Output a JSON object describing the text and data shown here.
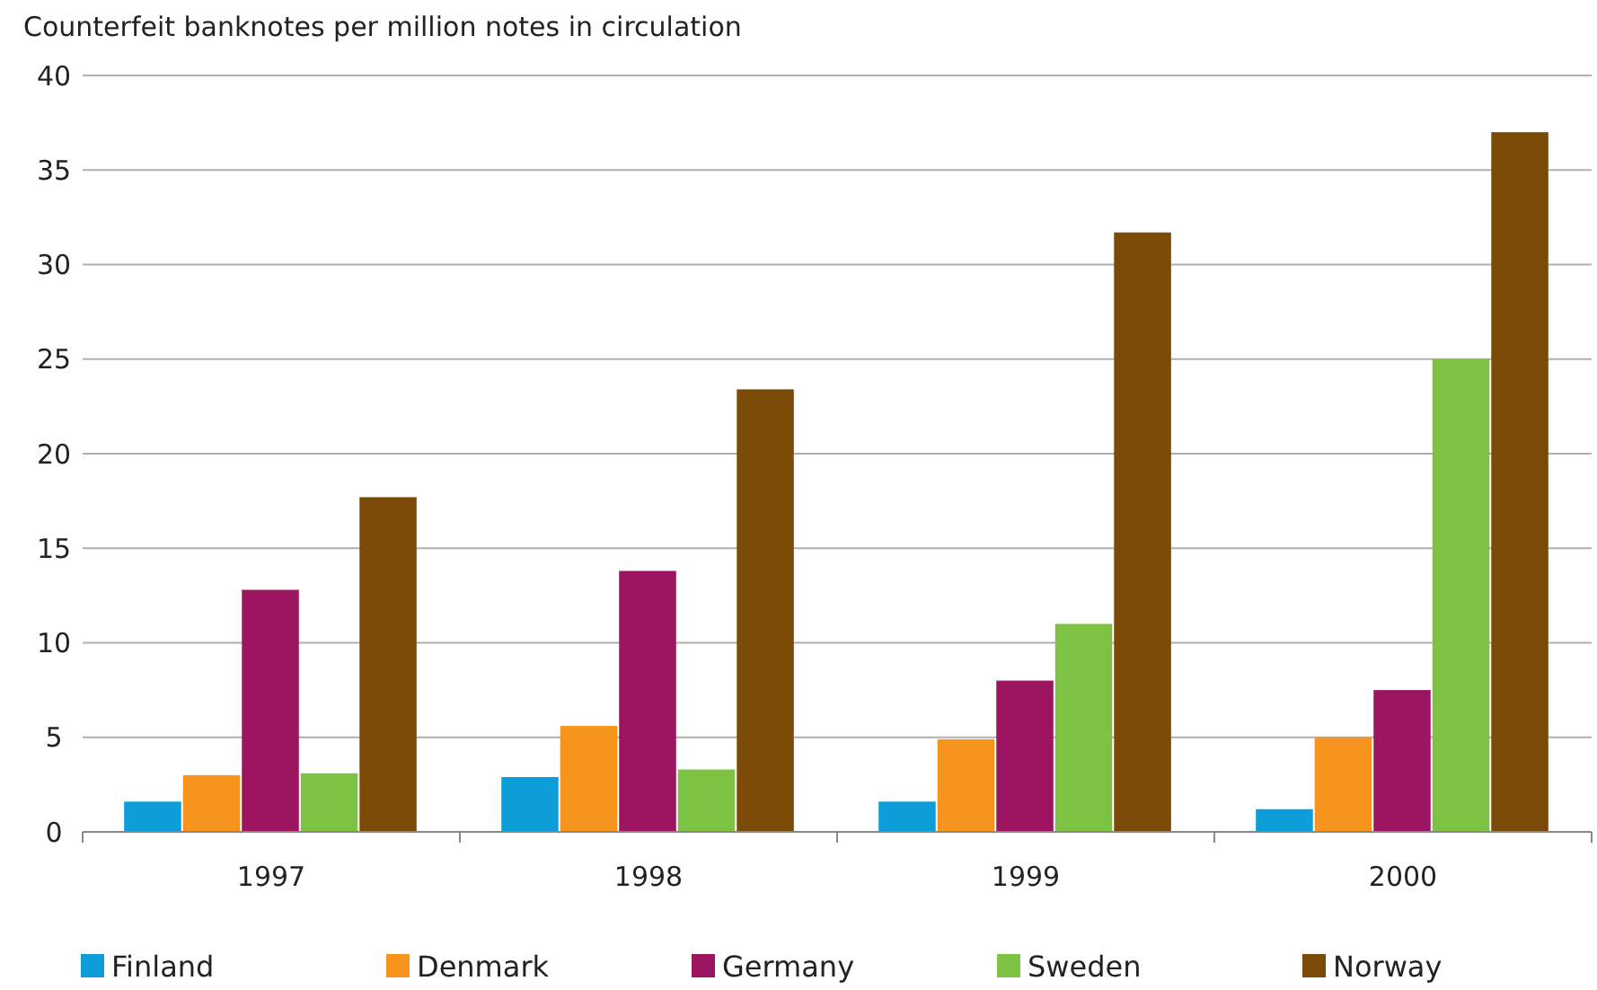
{
  "chart_data": {
    "type": "bar",
    "title": "Counterfeit banknotes per million notes in circulation",
    "categories": [
      "1997",
      "1998",
      "1999",
      "2000"
    ],
    "series": [
      {
        "name": "Finland",
        "color": "#0d9dd9",
        "values": [
          1.6,
          2.9,
          1.6,
          1.2
        ]
      },
      {
        "name": "Denmark",
        "color": "#f7941d",
        "values": [
          3.0,
          5.6,
          4.9,
          5.0
        ]
      },
      {
        "name": "Germany",
        "color": "#9b1560",
        "values": [
          12.8,
          13.8,
          8.0,
          7.5
        ]
      },
      {
        "name": "Sweden",
        "color": "#7dc242",
        "values": [
          3.1,
          3.3,
          11.0,
          25.0
        ]
      },
      {
        "name": "Norway",
        "color": "#7b4a07",
        "values": [
          17.7,
          23.4,
          31.7,
          37.0
        ]
      }
    ],
    "ylim": [
      0,
      40
    ],
    "yticks": [
      0,
      5,
      10,
      15,
      20,
      25,
      30,
      35,
      40
    ],
    "grid": "y",
    "legend": "bottom"
  }
}
